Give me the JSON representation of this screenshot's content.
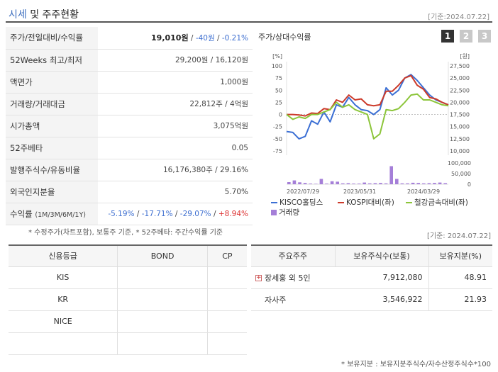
{
  "header": {
    "title_hl": "시세",
    "title_rest": " 및 주주현황",
    "date": "[기준:2024.07.22]"
  },
  "stats": {
    "price_label": "주가/전일대비/수익률",
    "price": "19,010원",
    "sep1": " / ",
    "change": "-40원",
    "sep2": " / ",
    "change_pct": "-0.21%",
    "week52_label": "52Weeks 최고/최저",
    "week52_value": "29,200원 / 16,120원",
    "par_label": "액면가",
    "par_value": "1,000원",
    "volume_label": "거래량/거래대금",
    "volume_value": "22,812주 / 4억원",
    "mcap_label": "시가총액",
    "mcap_value": "3,075억원",
    "beta_label": "52주베타",
    "beta_value": "0.05",
    "shares_label": "발행주식수/유동비율",
    "shares_value": "16,176,380주 / 29.16%",
    "foreign_label": "외국인지분율",
    "foreign_value": "5.70%",
    "return_label": "수익률",
    "return_period": "(1M/3M/6M/1Y)",
    "r1m": "-5.19%",
    "r3m": "-17.71%",
    "r6m": "-29.07%",
    "r1y": "+8.94%",
    "slash": "/"
  },
  "notes": {
    "note1": "* 수정주가(차트포함), 보통주 기준, * 52주베타: 주간수익률 기준",
    "date2": "[기준: 2024.07.22]",
    "note2": "* 보유지분 : 보유지분주식수/자수산정주식수*100"
  },
  "chart_panel": {
    "title": "주가/상대수익률",
    "tabs": [
      "1",
      "2",
      "3"
    ]
  },
  "chart_data": {
    "type": "line",
    "left_unit": "[%]",
    "right_unit": "[원]",
    "left_ticks": [
      "100",
      "75",
      "50",
      "25",
      "0",
      "-25",
      "-50",
      "-75"
    ],
    "right_ticks": [
      "27,500",
      "25,000",
      "22,500",
      "20,000",
      "17,500",
      "15,000",
      "12,500",
      "10,000"
    ],
    "ylim_left": [
      -75,
      100
    ],
    "ylim_right": [
      10000,
      27500
    ],
    "vol_ticks": [
      "100,000",
      "50,000",
      "0"
    ],
    "ylim_volume": [
      0,
      100000
    ],
    "x_ticks": [
      "2022/07/29",
      "2023/05/31",
      "2024/03/29"
    ],
    "series": [
      {
        "name": "KISCO홀딩스",
        "color": "#3b6fd4",
        "values": [
          -35,
          -37,
          -50,
          -45,
          -13,
          -20,
          5,
          -15,
          20,
          15,
          35,
          20,
          10,
          8,
          0,
          10,
          55,
          40,
          50,
          75,
          82,
          70,
          55,
          40,
          30,
          25,
          20
        ]
      },
      {
        "name": "KOSPI대비(좌)",
        "color": "#cc3a2a",
        "values": [
          0,
          0,
          -1,
          -3,
          3,
          2,
          12,
          10,
          30,
          25,
          40,
          30,
          32,
          20,
          18,
          20,
          48,
          48,
          60,
          75,
          80,
          60,
          52,
          35,
          32,
          25,
          20
        ]
      },
      {
        "name": "철강금속대비(좌)",
        "color": "#8cc53a",
        "values": [
          0,
          -10,
          -5,
          -8,
          0,
          0,
          5,
          10,
          25,
          15,
          20,
          10,
          5,
          0,
          -50,
          -40,
          10,
          8,
          12,
          25,
          40,
          42,
          30,
          30,
          25,
          20,
          18
        ]
      }
    ],
    "volume": {
      "name": "거래량",
      "color": "#a57fd8",
      "values": [
        10000,
        18000,
        9000,
        6000,
        3000,
        2000,
        25000,
        3000,
        14000,
        12000,
        4000,
        5000,
        3000,
        3000,
        8000,
        4000,
        5000,
        6000,
        4000,
        85000,
        25000,
        4000,
        4000,
        7000,
        6000,
        4000,
        5000,
        6000,
        8000,
        5000
      ]
    }
  },
  "credit": {
    "headers": [
      "신용등급",
      "BOND",
      "CP"
    ],
    "rows": [
      [
        "KIS",
        "",
        ""
      ],
      [
        "KR",
        "",
        ""
      ],
      [
        "NICE",
        "",
        ""
      ],
      [
        "",
        "",
        ""
      ]
    ]
  },
  "holders": {
    "headers": [
      "주요주주",
      "보유주식수(보통)",
      "보유지분(%)"
    ],
    "rows": [
      {
        "name": "장세홍 외 5인",
        "shares": "7,912,080",
        "pct": "48.91"
      },
      {
        "name": "자사주",
        "shares": "3,546,922",
        "pct": "21.93"
      }
    ]
  }
}
